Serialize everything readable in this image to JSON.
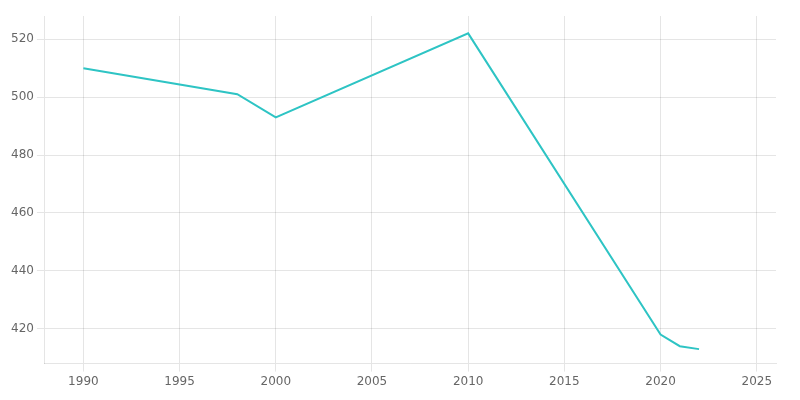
{
  "chart_data": {
    "type": "line",
    "x": [
      1990,
      1998,
      2000,
      2010,
      2020,
      2021,
      2022
    ],
    "values": [
      510,
      501,
      493,
      522,
      418,
      414,
      413
    ],
    "color": "#2EC4C4",
    "xlim": [
      1988,
      2026
    ],
    "ylim": [
      408,
      528
    ],
    "xticks": [
      1990,
      1995,
      2000,
      2005,
      2010,
      2015,
      2020,
      2025
    ],
    "yticks": [
      420,
      440,
      460,
      480,
      500,
      520
    ],
    "grid": true
  }
}
